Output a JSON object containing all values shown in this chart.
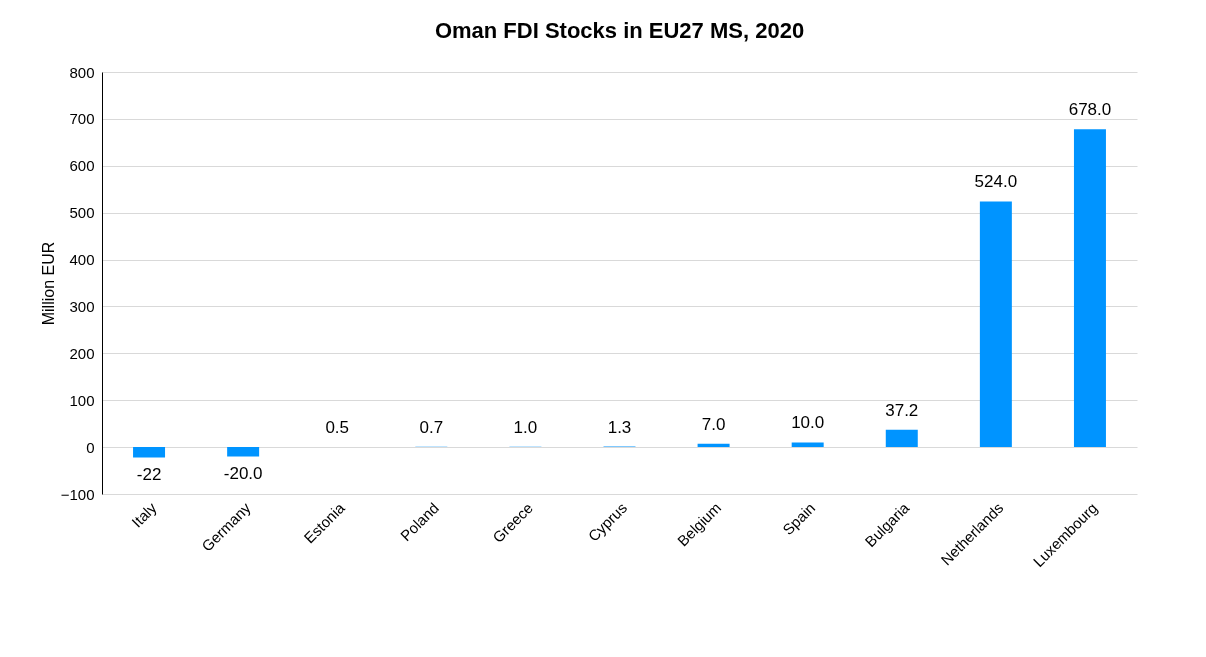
{
  "chart_data": {
    "type": "bar",
    "title": "Oman FDI Stocks in EU27 MS, 2020",
    "ylabel": "Million EUR",
    "categories": [
      "Italy",
      "Germany",
      "Estonia",
      "Poland",
      "Greece",
      "Cyprus",
      "Belgium",
      "Spain",
      "Bulgaria",
      "Netherlands",
      "Luxembourg"
    ],
    "values": [
      -22,
      -20,
      0.5,
      0.7,
      1,
      1.3,
      7,
      10,
      37.2,
      524,
      678
    ],
    "value_labels": [
      "-22",
      "-20.0",
      "0.5",
      "0.7",
      "1.0",
      "1.3",
      "7.0",
      "10.0",
      "37.2",
      "524.0",
      "678.0"
    ],
    "color": "#0094ff",
    "ylim": [
      -100,
      800
    ],
    "yticks": [
      -100,
      0,
      100,
      200,
      300,
      400,
      500,
      600,
      700,
      800
    ],
    "grid": "y"
  }
}
